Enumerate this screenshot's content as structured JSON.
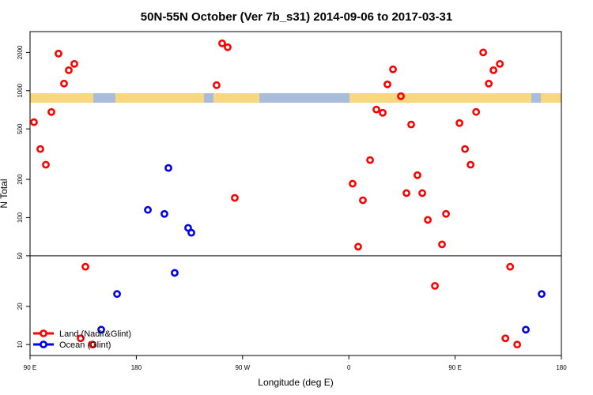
{
  "chart_data": {
    "type": "scatter",
    "title": "50N-55N October (Ver 7b_s31)   2014-09-06 to 2017-03-31",
    "x_label": "Longitude (deg E)",
    "y_label": "N Total",
    "y_log": true,
    "xlim": [
      90,
      540
    ],
    "xticks": [
      {
        "value": 90,
        "label": "90 E"
      },
      180,
      {
        "value": 270,
        "label": "90 W"
      },
      {
        "value": 360,
        "label": "0"
      },
      {
        "value": 450,
        "label": "90 E"
      },
      {
        "value": 540,
        "label": "180"
      }
    ],
    "ylim": [
      8.2,
      2920
    ],
    "yticks": [
      10,
      20,
      50,
      100,
      200,
      500,
      1000,
      2000
    ],
    "hline": 50,
    "legend": "bottom-left",
    "series": [
      {
        "name": "Land (Nadir&Glint)",
        "color": "#ff0000",
        "x": [
          93.3,
          98.7,
          103.4,
          108.1,
          114.1,
          118.8,
          122.8,
          127.5,
          132.9,
          136.9,
          142.9,
          248,
          252.7,
          257.4,
          263.4,
          363.2,
          367.9,
          371.9,
          378,
          383.3,
          388.7,
          392.7,
          397.4,
          404.1,
          408.8,
          412.8,
          418.1,
          422.2,
          426.9,
          432.9,
          438.9,
          442.3,
          453.7,
          458.4,
          463.1,
          467.8,
          473.8,
          478.5,
          482.5,
          487.9,
          492.6,
          496.6,
          502.6
        ],
        "values": [
          565,
          347,
          261,
          679,
          1960,
          1137,
          1449,
          1626,
          11.2,
          41,
          10,
          1105,
          2360,
          2200,
          143,
          185,
          59,
          137,
          284,
          710,
          670,
          1122,
          1472,
          905,
          156,
          541,
          216,
          156,
          96,
          29,
          61.5,
          107,
          556,
          347,
          261,
          680,
          2000,
          1137,
          1449,
          1626,
          11.2,
          41,
          10
        ]
      },
      {
        "name": "Ocean (Glint)",
        "color": "#0000ee",
        "x": [
          150.3,
          163.7,
          189.8,
          203.8,
          207.2,
          212.5,
          223.9,
          226.6,
          509.9,
          523.3
        ],
        "values": [
          13.1,
          25,
          115,
          107,
          246,
          36.7,
          83,
          76,
          13.1,
          25
        ]
      }
    ]
  }
}
